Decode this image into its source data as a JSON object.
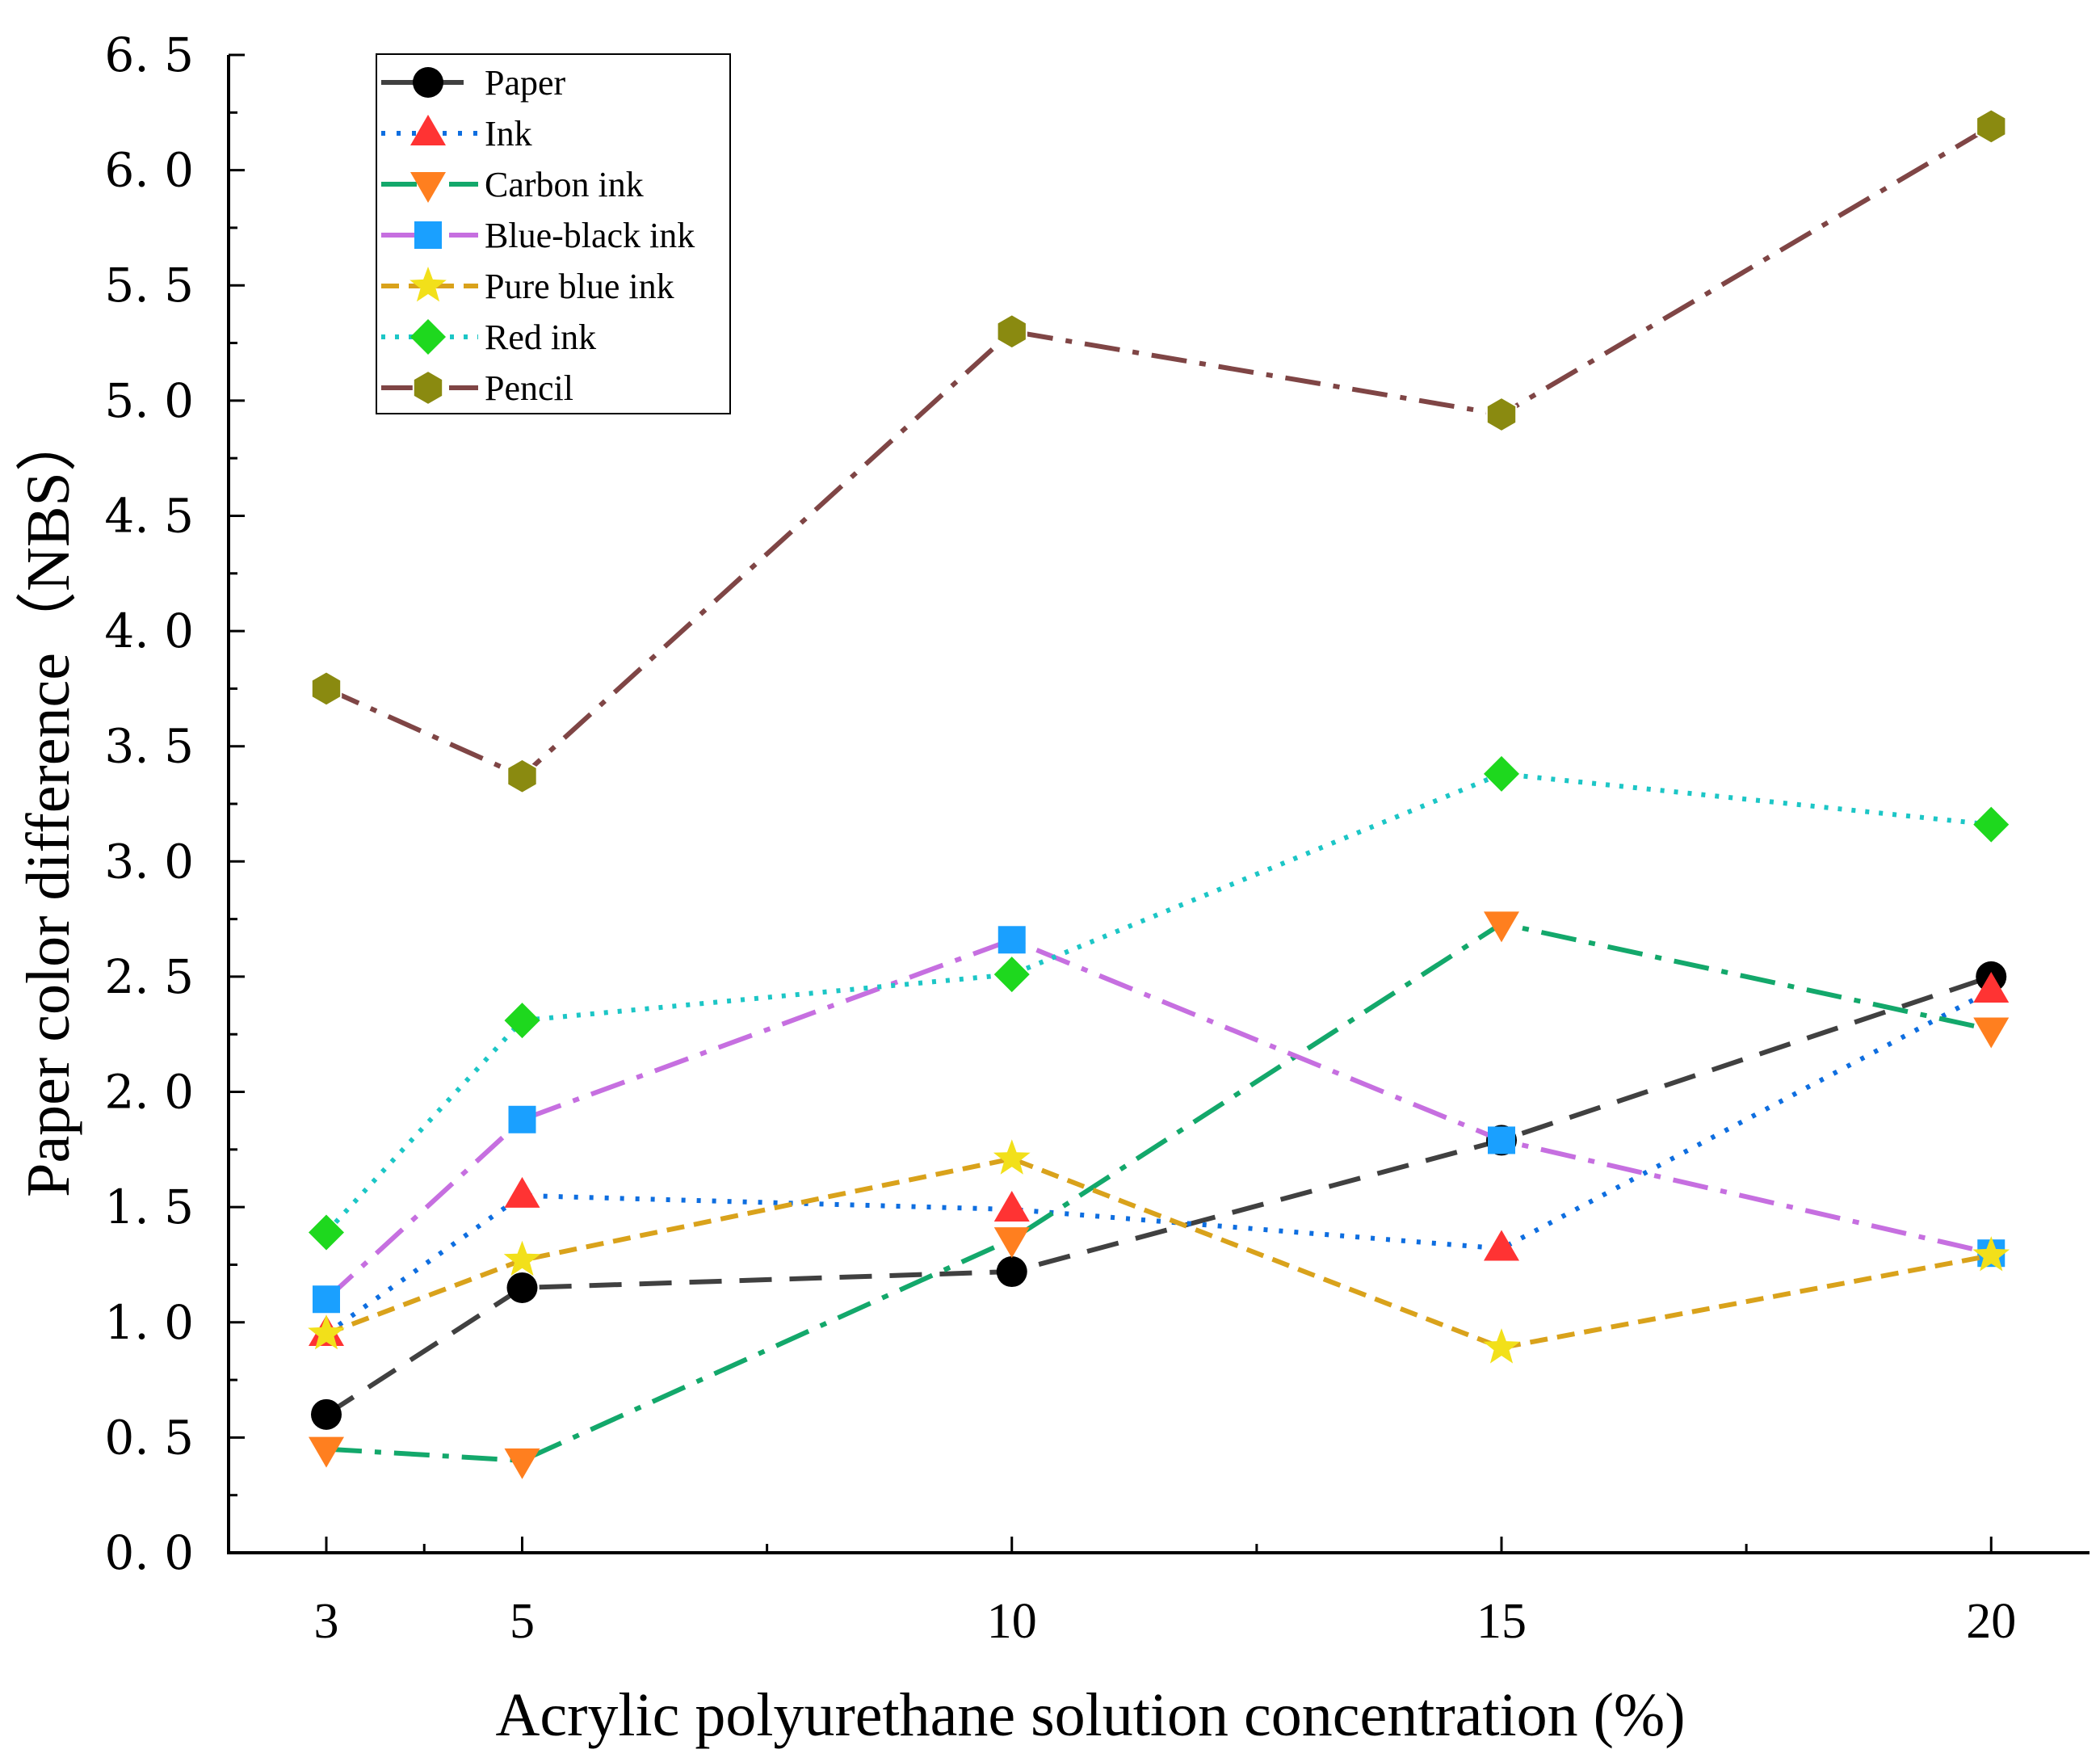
{
  "chart_data": {
    "type": "line",
    "title": "",
    "xlabel": "Acrylic polyurethane solution concentration (%)",
    "ylabel": "Paper color difference（NBS）",
    "x": [
      3,
      5,
      10,
      15,
      20
    ],
    "x_tick_labels": [
      "3",
      "5",
      "10",
      "15",
      "20"
    ],
    "xlim": [
      2,
      21
    ],
    "ylim": [
      0,
      6.5
    ],
    "y_tick_labels": [
      "0. 0",
      "0. 5",
      "1. 0",
      "1. 5",
      "2. 0",
      "2. 5",
      "3. 0",
      "3. 5",
      "4. 0",
      "4. 5",
      "5. 0",
      "5. 5",
      "6. 0",
      "6. 5"
    ],
    "y_ticks": [
      0,
      0.5,
      1,
      1.5,
      2,
      2.5,
      3,
      3.5,
      4,
      4.5,
      5,
      5.5,
      6,
      6.5
    ],
    "grid": false,
    "legend_position": "top-left",
    "series": [
      {
        "name": "Paper",
        "values": [
          0.6,
          1.15,
          1.22,
          1.79,
          2.5
        ],
        "color": "#404040",
        "marker": "circle",
        "marker_color": "#000000",
        "dash": "40,22"
      },
      {
        "name": "Ink",
        "values": [
          0.95,
          1.55,
          1.49,
          1.32,
          2.44
        ],
        "color": "#0e6ee0",
        "marker": "triangle-up",
        "marker_color": "#ff3333",
        "dash": "5,14"
      },
      {
        "name": "Carbon ink",
        "values": [
          0.45,
          0.4,
          1.36,
          2.73,
          2.27
        ],
        "color": "#13a86b",
        "marker": "triangle-down",
        "marker_color": "#ff7f1f",
        "dash": "44,16,8,16"
      },
      {
        "name": "Blue-black ink",
        "values": [
          1.1,
          1.88,
          2.66,
          1.79,
          1.3
        ],
        "color": "#c66fe0",
        "marker": "square",
        "marker_color": "#1aa0ff",
        "dash": "44,16,8,16"
      },
      {
        "name": "Pure blue ink",
        "values": [
          0.95,
          1.27,
          1.71,
          0.89,
          1.29
        ],
        "color": "#d9a21b",
        "marker": "star",
        "marker_color": "#f2e01a",
        "dash": "22,12"
      },
      {
        "name": "Red ink",
        "values": [
          1.39,
          2.31,
          2.51,
          3.38,
          3.16
        ],
        "color": "#1cc6c6",
        "marker": "diamond",
        "marker_color": "#1ed81e",
        "dash": "5,12"
      },
      {
        "name": "Pencil",
        "values": [
          3.75,
          3.37,
          5.3,
          4.94,
          6.19
        ],
        "color": "#7f4545",
        "marker": "hexagon",
        "marker_color": "#8a8a10",
        "dash": "44,16,8,16"
      }
    ]
  }
}
